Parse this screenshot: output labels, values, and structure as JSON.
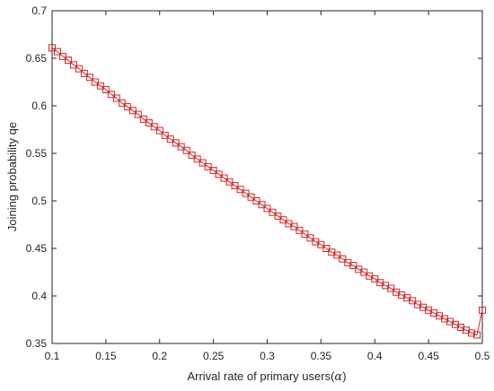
{
  "chart_data": {
    "type": "line",
    "xlabel": "Arrival rate of primary users(",
    "xlabel_symbol": "α",
    "xlabel_suffix": ")",
    "ylabel": "Joining probability qe",
    "xlim": [
      0.1,
      0.5
    ],
    "ylim": [
      0.35,
      0.7
    ],
    "x_ticks": [
      "0.1",
      "0.15",
      "0.2",
      "0.25",
      "0.3",
      "0.35",
      "0.4",
      "0.45",
      "0.5"
    ],
    "y_ticks": [
      "0.35",
      "0.4",
      "0.45",
      "0.5",
      "0.55",
      "0.6",
      "0.65",
      "0.7"
    ],
    "grid": false,
    "series": [
      {
        "marker": "square",
        "color": "#d62728",
        "x": [
          0.1,
          0.105,
          0.11,
          0.115,
          0.12,
          0.125,
          0.13,
          0.135,
          0.14,
          0.145,
          0.15,
          0.155,
          0.16,
          0.165,
          0.17,
          0.175,
          0.18,
          0.185,
          0.19,
          0.195,
          0.2,
          0.205,
          0.21,
          0.215,
          0.22,
          0.225,
          0.23,
          0.235,
          0.24,
          0.245,
          0.25,
          0.255,
          0.26,
          0.265,
          0.27,
          0.275,
          0.28,
          0.285,
          0.29,
          0.295,
          0.3,
          0.305,
          0.31,
          0.315,
          0.32,
          0.325,
          0.33,
          0.335,
          0.34,
          0.345,
          0.35,
          0.355,
          0.36,
          0.365,
          0.37,
          0.375,
          0.38,
          0.385,
          0.39,
          0.395,
          0.4,
          0.405,
          0.41,
          0.415,
          0.42,
          0.425,
          0.43,
          0.435,
          0.44,
          0.445,
          0.45,
          0.455,
          0.46,
          0.465,
          0.47,
          0.475,
          0.48,
          0.485,
          0.49,
          0.495,
          0.5
        ],
        "y": [
          0.661,
          0.657,
          0.652,
          0.648,
          0.643,
          0.639,
          0.634,
          0.63,
          0.625,
          0.621,
          0.617,
          0.612,
          0.608,
          0.603,
          0.599,
          0.595,
          0.591,
          0.586,
          0.582,
          0.578,
          0.574,
          0.569,
          0.565,
          0.561,
          0.557,
          0.553,
          0.548,
          0.544,
          0.54,
          0.536,
          0.532,
          0.528,
          0.524,
          0.52,
          0.516,
          0.512,
          0.508,
          0.504,
          0.5,
          0.496,
          0.492,
          0.488,
          0.484,
          0.48,
          0.476,
          0.473,
          0.469,
          0.465,
          0.461,
          0.457,
          0.454,
          0.45,
          0.446,
          0.443,
          0.439,
          0.435,
          0.432,
          0.428,
          0.425,
          0.421,
          0.418,
          0.414,
          0.411,
          0.408,
          0.404,
          0.401,
          0.398,
          0.395,
          0.391,
          0.388,
          0.385,
          0.382,
          0.379,
          0.376,
          0.373,
          0.37,
          0.367,
          0.364,
          0.361,
          0.359,
          0.385
        ]
      }
    ]
  }
}
